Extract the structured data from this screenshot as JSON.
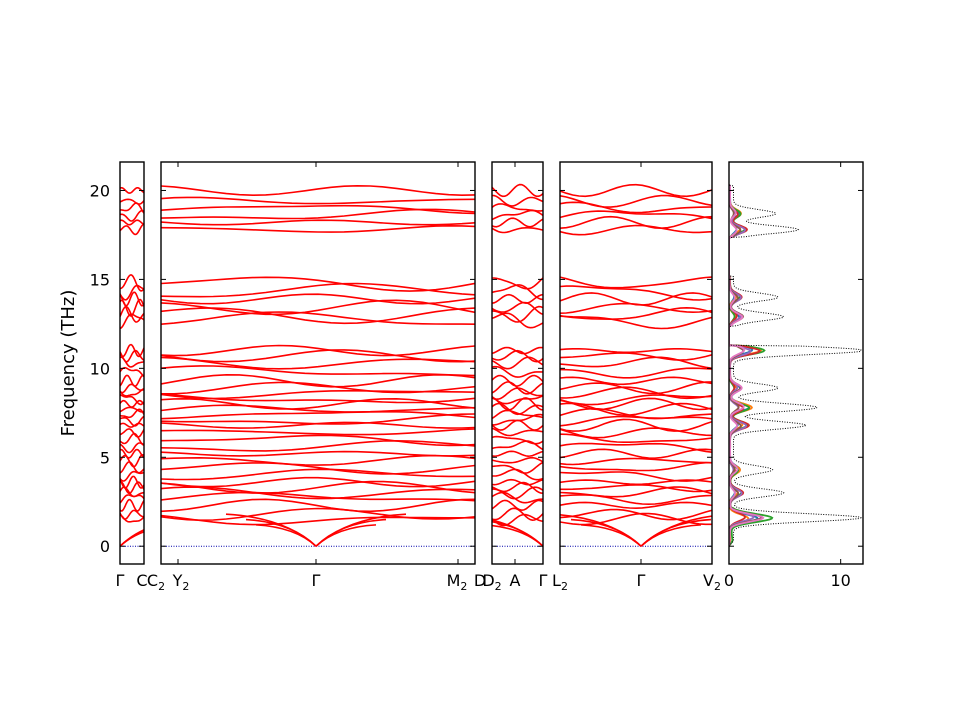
{
  "chart_data": {
    "type": "line",
    "ylabel": "Frequency (THz)",
    "ylim": [
      -1.0,
      21.6
    ],
    "yticks": [
      0,
      5,
      10,
      15,
      20
    ],
    "band_color": "#ff0000",
    "zero_line_color": "#0000aa",
    "segments": [
      {
        "name": "segment-1",
        "ticks": [
          "Γ",
          "C"
        ]
      },
      {
        "name": "segment-2",
        "ticks": [
          "C2",
          "Y2",
          "Γ",
          "M2",
          "D"
        ]
      },
      {
        "name": "segment-3",
        "ticks": [
          "D2",
          "A",
          "Γ"
        ]
      },
      {
        "name": "segment-4",
        "ticks": [
          "L2",
          "Γ",
          "V2"
        ]
      }
    ],
    "tick_labels": [
      {
        "base": "Γ",
        "sub": ""
      },
      {
        "base": "C",
        "sub": ""
      },
      {
        "base": "C",
        "sub": "2"
      },
      {
        "base": "Y",
        "sub": "2"
      },
      {
        "base": "Γ",
        "sub": ""
      },
      {
        "base": "M",
        "sub": "2"
      },
      {
        "base": "D",
        "sub": ""
      },
      {
        "base": "D",
        "sub": "2"
      },
      {
        "base": "A",
        "sub": ""
      },
      {
        "base": "Γ",
        "sub": ""
      },
      {
        "base": "L",
        "sub": "2"
      },
      {
        "base": "Γ",
        "sub": ""
      },
      {
        "base": "V",
        "sub": "2"
      }
    ],
    "band_levels": [
      1.1,
      1.5,
      1.8,
      2.3,
      2.7,
      3.0,
      3.3,
      3.6,
      4.0,
      4.4,
      4.8,
      5.2,
      5.6,
      6.0,
      6.4,
      6.8,
      7.1,
      7.4,
      7.7,
      8.0,
      8.3,
      8.6,
      8.9,
      9.3,
      9.8,
      10.3,
      10.7,
      11.0,
      12.7,
      13.0,
      13.4,
      13.9,
      14.3,
      14.8,
      17.8,
      18.2,
      18.6,
      19.0,
      19.4,
      20.0
    ],
    "dos_panel": {
      "xlim": [
        0,
        12
      ],
      "xticks": [
        0,
        10
      ],
      "series_colors": [
        "#000000",
        "#1f77b4",
        "#ff7f0e",
        "#2ca02c",
        "#d62728",
        "#9467bd",
        "#8c564b",
        "#e377c2"
      ],
      "total_peaks": [
        {
          "freq": 1.6,
          "value": 11.5
        },
        {
          "freq": 3.0,
          "value": 4.5
        },
        {
          "freq": 4.3,
          "value": 3.5
        },
        {
          "freq": 6.8,
          "value": 6.5
        },
        {
          "freq": 7.8,
          "value": 7.5
        },
        {
          "freq": 8.9,
          "value": 4.0
        },
        {
          "freq": 11.0,
          "value": 11.8
        },
        {
          "freq": 12.9,
          "value": 4.5
        },
        {
          "freq": 14.0,
          "value": 4.0
        },
        {
          "freq": 17.8,
          "value": 5.8
        },
        {
          "freq": 18.7,
          "value": 3.8
        }
      ]
    }
  }
}
